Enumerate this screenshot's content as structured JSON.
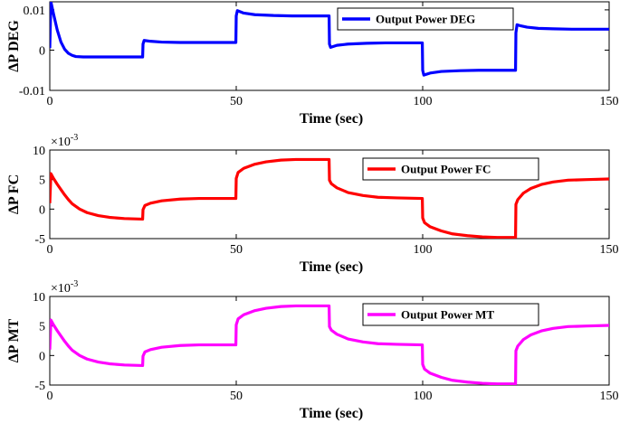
{
  "chart_data": [
    {
      "type": "line",
      "ylabel": "ΔP DEG",
      "xlabel": "Time (sec)",
      "xlim": [
        0,
        150
      ],
      "ylim": [
        -0.01,
        0.012
      ],
      "xticks": [
        0,
        50,
        100,
        150
      ],
      "yticks": [
        -0.01,
        0,
        0.01
      ],
      "ytick_labels": [
        "-0.01",
        "0",
        "0.01"
      ],
      "exponent_label": "",
      "legend_position": "top-right",
      "grid": false,
      "series": [
        {
          "name": "Output Power DEG",
          "color": "#0000ff",
          "points": [
            [
              0,
              0.0005
            ],
            [
              0.3,
              0.012
            ],
            [
              1,
              0.009
            ],
            [
              2,
              0.005
            ],
            [
              3,
              0.002
            ],
            [
              4,
              0.0002
            ],
            [
              5,
              -0.0008
            ],
            [
              6,
              -0.0013
            ],
            [
              7,
              -0.0016
            ],
            [
              9,
              -0.0017
            ],
            [
              12,
              -0.0017
            ],
            [
              18,
              -0.0017
            ],
            [
              24.9,
              -0.0017
            ],
            [
              25,
              0.0015
            ],
            [
              25.3,
              0.0024
            ],
            [
              27,
              0.0022
            ],
            [
              30,
              0.002
            ],
            [
              35,
              0.0019
            ],
            [
              40,
              0.0019
            ],
            [
              49.9,
              0.0019
            ],
            [
              50,
              0.0085
            ],
            [
              50.3,
              0.0098
            ],
            [
              52,
              0.0092
            ],
            [
              55,
              0.0088
            ],
            [
              60,
              0.0086
            ],
            [
              65,
              0.0085
            ],
            [
              70,
              0.0085
            ],
            [
              74.9,
              0.0085
            ],
            [
              75,
              0.0015
            ],
            [
              75.3,
              0.0007
            ],
            [
              77,
              0.0012
            ],
            [
              80,
              0.0015
            ],
            [
              85,
              0.0017
            ],
            [
              90,
              0.0018
            ],
            [
              99.9,
              0.0018
            ],
            [
              100,
              -0.005
            ],
            [
              100.3,
              -0.0062
            ],
            [
              102,
              -0.0057
            ],
            [
              105,
              -0.0053
            ],
            [
              110,
              -0.0051
            ],
            [
              115,
              -0.005
            ],
            [
              124.9,
              -0.005
            ],
            [
              125,
              0.0043
            ],
            [
              125.3,
              0.0063
            ],
            [
              126,
              0.0061
            ],
            [
              128,
              0.0057
            ],
            [
              131,
              0.0054
            ],
            [
              135,
              0.0053
            ],
            [
              140,
              0.0052
            ],
            [
              150,
              0.0052
            ]
          ]
        }
      ]
    },
    {
      "type": "line",
      "ylabel": "ΔP FC",
      "xlabel": "Time (sec)",
      "xlim": [
        0,
        150
      ],
      "ylim": [
        -0.005,
        0.01
      ],
      "xticks": [
        0,
        50,
        100,
        150
      ],
      "yticks": [
        -0.005,
        0,
        0.005,
        0.01
      ],
      "ytick_labels": [
        "-5",
        "0",
        "5",
        "10"
      ],
      "exponent_label": "×10",
      "exponent_power": "-3",
      "legend_position": "top-right",
      "grid": false,
      "series": [
        {
          "name": "Output Power FC",
          "color": "#ff0000",
          "points": [
            [
              0,
              0.001
            ],
            [
              0.3,
              0.006
            ],
            [
              1,
              0.0052
            ],
            [
              2,
              0.0042
            ],
            [
              3,
              0.0033
            ],
            [
              4,
              0.0024
            ],
            [
              5,
              0.0016
            ],
            [
              6,
              0.0009
            ],
            [
              8,
              0.0
            ],
            [
              10,
              -0.0006
            ],
            [
              13,
              -0.0011
            ],
            [
              16,
              -0.0014
            ],
            [
              20,
              -0.0016
            ],
            [
              24.9,
              -0.0017
            ],
            [
              25,
              -0.0001
            ],
            [
              25.5,
              0.0006
            ],
            [
              27,
              0.001
            ],
            [
              30,
              0.0014
            ],
            [
              35,
              0.0017
            ],
            [
              40,
              0.0018
            ],
            [
              49.9,
              0.0018
            ],
            [
              50,
              0.0052
            ],
            [
              50.5,
              0.0062
            ],
            [
              52,
              0.0069
            ],
            [
              55,
              0.0076
            ],
            [
              58,
              0.008
            ],
            [
              62,
              0.0083
            ],
            [
              66,
              0.0084
            ],
            [
              74.9,
              0.0084
            ],
            [
              75,
              0.0049
            ],
            [
              75.5,
              0.0043
            ],
            [
              77,
              0.0036
            ],
            [
              80,
              0.0028
            ],
            [
              84,
              0.0023
            ],
            [
              88,
              0.002
            ],
            [
              93,
              0.0019
            ],
            [
              99.9,
              0.0018
            ],
            [
              100,
              -0.0015
            ],
            [
              100.5,
              -0.0023
            ],
            [
              102,
              -0.003
            ],
            [
              105,
              -0.0037
            ],
            [
              108,
              -0.0042
            ],
            [
              112,
              -0.0045
            ],
            [
              116,
              -0.0047
            ],
            [
              120,
              -0.0048
            ],
            [
              124.9,
              -0.0048
            ],
            [
              125,
              0.0008
            ],
            [
              125.5,
              0.0016
            ],
            [
              127,
              0.0027
            ],
            [
              129,
              0.0035
            ],
            [
              132,
              0.0042
            ],
            [
              135,
              0.0046
            ],
            [
              139,
              0.0049
            ],
            [
              144,
              0.005
            ],
            [
              150,
              0.0051
            ]
          ]
        }
      ]
    },
    {
      "type": "line",
      "ylabel": "ΔP MT",
      "xlabel": "Time (sec)",
      "xlim": [
        0,
        150
      ],
      "ylim": [
        -0.005,
        0.01
      ],
      "xticks": [
        0,
        50,
        100,
        150
      ],
      "yticks": [
        -0.005,
        0,
        0.005,
        0.01
      ],
      "ytick_labels": [
        "-5",
        "0",
        "5",
        "10"
      ],
      "exponent_label": "×10",
      "exponent_power": "-3",
      "legend_position": "top-right",
      "grid": false,
      "series": [
        {
          "name": "Output Power MT",
          "color": "#ff00ff",
          "points": [
            [
              0,
              0.001
            ],
            [
              0.3,
              0.006
            ],
            [
              1,
              0.0052
            ],
            [
              2,
              0.0042
            ],
            [
              3,
              0.0033
            ],
            [
              4,
              0.0024
            ],
            [
              5,
              0.0016
            ],
            [
              6,
              0.0009
            ],
            [
              8,
              0.0
            ],
            [
              10,
              -0.0006
            ],
            [
              13,
              -0.0011
            ],
            [
              16,
              -0.0014
            ],
            [
              20,
              -0.0016
            ],
            [
              24.9,
              -0.0017
            ],
            [
              25,
              -0.0001
            ],
            [
              25.5,
              0.0006
            ],
            [
              27,
              0.001
            ],
            [
              30,
              0.0014
            ],
            [
              35,
              0.0017
            ],
            [
              40,
              0.0018
            ],
            [
              49.9,
              0.0018
            ],
            [
              50,
              0.0052
            ],
            [
              50.5,
              0.0062
            ],
            [
              52,
              0.0069
            ],
            [
              55,
              0.0076
            ],
            [
              58,
              0.008
            ],
            [
              62,
              0.0083
            ],
            [
              66,
              0.0084
            ],
            [
              74.9,
              0.0084
            ],
            [
              75,
              0.0049
            ],
            [
              75.5,
              0.0043
            ],
            [
              77,
              0.0036
            ],
            [
              80,
              0.0028
            ],
            [
              84,
              0.0023
            ],
            [
              88,
              0.002
            ],
            [
              93,
              0.0019
            ],
            [
              99.9,
              0.0018
            ],
            [
              100,
              -0.0015
            ],
            [
              100.5,
              -0.0023
            ],
            [
              102,
              -0.003
            ],
            [
              105,
              -0.0037
            ],
            [
              108,
              -0.0042
            ],
            [
              112,
              -0.0045
            ],
            [
              116,
              -0.0047
            ],
            [
              120,
              -0.0048
            ],
            [
              124.9,
              -0.0048
            ],
            [
              125,
              0.0008
            ],
            [
              125.5,
              0.0016
            ],
            [
              127,
              0.0027
            ],
            [
              129,
              0.0035
            ],
            [
              132,
              0.0042
            ],
            [
              135,
              0.0046
            ],
            [
              139,
              0.0049
            ],
            [
              144,
              0.005
            ],
            [
              150,
              0.0051
            ]
          ]
        }
      ]
    }
  ]
}
